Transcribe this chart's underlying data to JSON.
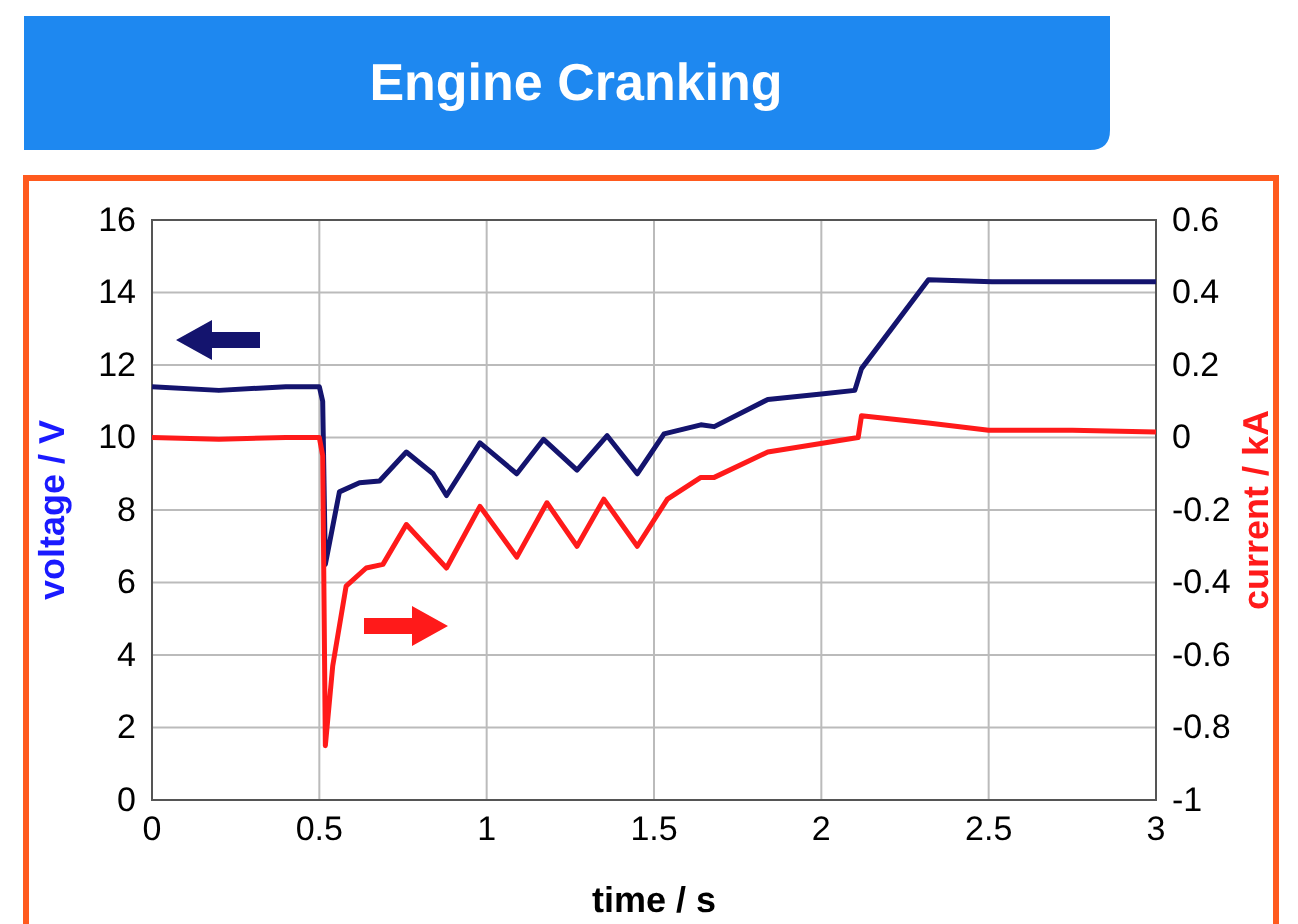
{
  "chart_data": {
    "type": "line",
    "title": "Engine Cranking",
    "xlabel": "time / s",
    "ylabel": "voltage / V",
    "y2label": "current / kA",
    "xlim": [
      0,
      3
    ],
    "xticks": [
      0,
      0.5,
      1,
      1.5,
      2,
      2.5,
      3
    ],
    "ylim": [
      0,
      16
    ],
    "yticks": [
      0,
      2,
      4,
      6,
      8,
      10,
      12,
      14,
      16
    ],
    "y2lim": [
      -1,
      0.6
    ],
    "y2ticks": [
      -1,
      -0.8,
      -0.6,
      -0.4,
      -0.2,
      0,
      0.2,
      0.4,
      0.6
    ],
    "grid": true,
    "line_style": "solid",
    "series": [
      {
        "color": "#14146e",
        "x": [
          0,
          0.2,
          0.4,
          0.5,
          0.51,
          0.518,
          0.56,
          0.62,
          0.68,
          0.76,
          0.84,
          0.88,
          0.98,
          1.09,
          1.17,
          1.27,
          1.36,
          1.45,
          1.53,
          1.64,
          1.68,
          1.84,
          2.0,
          2.1,
          2.12,
          2.32,
          2.51,
          2.75,
          3.0
        ],
        "values": [
          11.4,
          11.3,
          11.4,
          11.4,
          11.0,
          6.5,
          8.5,
          8.75,
          8.8,
          9.6,
          9.0,
          8.4,
          9.85,
          9.0,
          9.95,
          9.1,
          10.05,
          9.0,
          10.1,
          10.35,
          10.3,
          11.05,
          11.2,
          11.3,
          11.9,
          14.35,
          14.3,
          14.3,
          14.3
        ]
      },
      {
        "color": "#ff1a1a",
        "axis": "y2",
        "x": [
          0,
          0.2,
          0.4,
          0.5,
          0.51,
          0.518,
          0.54,
          0.58,
          0.64,
          0.69,
          0.76,
          0.88,
          0.98,
          1.09,
          1.18,
          1.27,
          1.35,
          1.45,
          1.54,
          1.64,
          1.68,
          1.84,
          2.11,
          2.12,
          2.32,
          2.5,
          2.75,
          3.0
        ],
        "values": [
          0,
          -0.005,
          0,
          0,
          -0.05,
          -0.85,
          -0.63,
          -0.41,
          -0.36,
          -0.35,
          -0.24,
          -0.36,
          -0.19,
          -0.33,
          -0.18,
          -0.3,
          -0.17,
          -0.3,
          -0.17,
          -0.11,
          -0.11,
          -0.04,
          0,
          0.06,
          0.04,
          0.02,
          0.02,
          0.015
        ]
      }
    ]
  }
}
